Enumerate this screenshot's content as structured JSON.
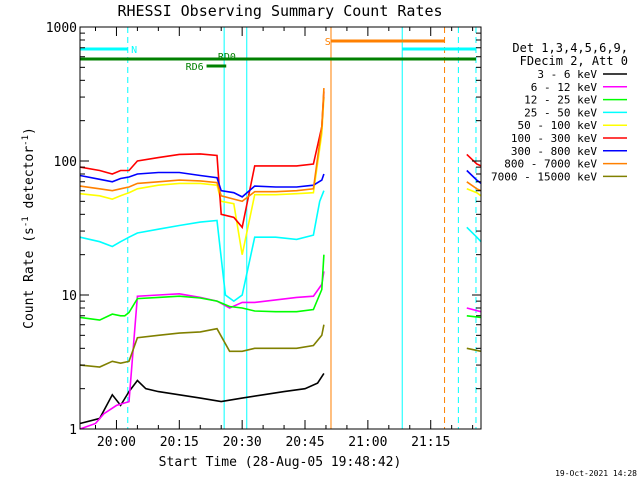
{
  "chart_data": {
    "type": "line",
    "title": "RHESSI Observing Summary Count Rates",
    "xlabel": "Start Time (28-Aug-05 19:48:42)",
    "ylabel_main": "Count Rate (s",
    "ylabel_sup1": "-1",
    "ylabel_mid": " detector",
    "ylabel_sup2": "-1",
    "ylabel_end": ")",
    "y_scale": "log",
    "ylim": [
      1,
      1000
    ],
    "xlim_minutes": [
      -8.7,
      87
    ],
    "x_ticks": [
      {
        "label": "20:00",
        "t": 0
      },
      {
        "label": "20:15",
        "t": 15
      },
      {
        "label": "20:30",
        "t": 30
      },
      {
        "label": "20:45",
        "t": 45
      },
      {
        "label": "21:00",
        "t": 60
      },
      {
        "label": "21:15",
        "t": 75
      }
    ],
    "y_ticks": [
      {
        "label": "1",
        "v": 1
      },
      {
        "label": "10",
        "v": 10
      },
      {
        "label": "100",
        "v": 100
      },
      {
        "label": "1000",
        "v": 1000
      }
    ],
    "legend_header": [
      "Det 1,3,4,5,6,9,",
      "FDecim 2, Att 0"
    ],
    "legend_position": "right",
    "footer_date": "19-Oct-2021 14:28",
    "series": [
      {
        "name": "3 - 6 keV",
        "color": "#000000",
        "segments": [
          [
            [
              -8.7,
              1.1
            ],
            [
              -4,
              1.2
            ],
            [
              -1,
              1.8
            ],
            [
              1,
              1.5
            ],
            [
              3,
              1.9
            ],
            [
              5,
              2.3
            ],
            [
              7,
              2.0
            ],
            [
              10,
              1.9
            ],
            [
              15,
              1.8
            ],
            [
              20,
              1.7
            ],
            [
              25,
              1.6
            ],
            [
              30,
              1.7
            ],
            [
              35,
              1.8
            ],
            [
              40,
              1.9
            ],
            [
              45,
              2.0
            ],
            [
              48,
              2.2
            ],
            [
              49.5,
              2.6
            ]
          ]
        ]
      },
      {
        "name": "6 - 12 keV",
        "color": "#ff00ff",
        "segments": [
          [
            [
              -8.7,
              1.0
            ],
            [
              -5,
              1.1
            ],
            [
              -3,
              1.3
            ],
            [
              0,
              1.5
            ],
            [
              3,
              1.6
            ],
            [
              5,
              9.8
            ],
            [
              10,
              10.0
            ],
            [
              15,
              10.2
            ],
            [
              20,
              9.6
            ],
            [
              24,
              9.0
            ],
            [
              27,
              8.0
            ],
            [
              30,
              8.8
            ],
            [
              33,
              8.8
            ],
            [
              38,
              9.2
            ],
            [
              43,
              9.6
            ],
            [
              47,
              9.8
            ],
            [
              49,
              12
            ],
            [
              49.5,
              15
            ]
          ],
          [
            [
              83.6,
              8.0
            ],
            [
              87,
              7.5
            ]
          ]
        ]
      },
      {
        "name": "12 - 25 keV",
        "color": "#00ff00",
        "segments": [
          [
            [
              -8.7,
              6.8
            ],
            [
              -4,
              6.5
            ],
            [
              -1,
              7.2
            ],
            [
              1,
              7.0
            ],
            [
              2,
              7.0
            ],
            [
              3,
              7.4
            ],
            [
              5,
              9.4
            ],
            [
              10,
              9.6
            ],
            [
              15,
              9.8
            ],
            [
              20,
              9.5
            ],
            [
              24,
              9.0
            ],
            [
              27,
              8.2
            ],
            [
              30,
              8.0
            ],
            [
              33,
              7.6
            ],
            [
              38,
              7.5
            ],
            [
              43,
              7.5
            ],
            [
              47,
              7.8
            ],
            [
              49,
              11
            ],
            [
              49.5,
              20
            ]
          ],
          [
            [
              83.6,
              7.0
            ],
            [
              87,
              6.8
            ]
          ]
        ]
      },
      {
        "name": "25 - 50 keV",
        "color": "#00ffff",
        "segments": [
          [
            [
              -8.7,
              27
            ],
            [
              -4,
              25
            ],
            [
              -1,
              23
            ],
            [
              1,
              25
            ],
            [
              3,
              27
            ],
            [
              5,
              29
            ],
            [
              10,
              31
            ],
            [
              15,
              33
            ],
            [
              20,
              35
            ],
            [
              24,
              36
            ],
            [
              26,
              10
            ],
            [
              28,
              9
            ],
            [
              30,
              10
            ],
            [
              33,
              27
            ],
            [
              38,
              27
            ],
            [
              43,
              26
            ],
            [
              47,
              28
            ],
            [
              48.5,
              50
            ],
            [
              49.5,
              60
            ]
          ],
          [
            [
              83.6,
              32
            ],
            [
              86,
              27
            ],
            [
              87,
              25
            ]
          ]
        ]
      },
      {
        "name": "50 - 100 keV",
        "color": "#ffff00",
        "segments": [
          [
            [
              -8.7,
              57
            ],
            [
              -4,
              55
            ],
            [
              -1,
              52
            ],
            [
              1,
              55
            ],
            [
              3,
              58
            ],
            [
              5,
              62
            ],
            [
              10,
              66
            ],
            [
              15,
              68
            ],
            [
              20,
              68
            ],
            [
              24,
              66
            ],
            [
              25,
              50
            ],
            [
              28,
              48
            ],
            [
              30,
              20
            ],
            [
              33,
              56
            ],
            [
              38,
              56
            ],
            [
              43,
              57
            ],
            [
              47,
              58
            ],
            [
              49,
              160
            ],
            [
              49.5,
              300
            ]
          ],
          [
            [
              83.6,
              62
            ],
            [
              86,
              58
            ],
            [
              87,
              55
            ]
          ]
        ]
      },
      {
        "name": "100 - 300 keV",
        "color": "#ff0000",
        "segments": [
          [
            [
              -8.7,
              90
            ],
            [
              -4,
              85
            ],
            [
              -1,
              80
            ],
            [
              1,
              85
            ],
            [
              3,
              85
            ],
            [
              5,
              100
            ],
            [
              10,
              106
            ],
            [
              15,
              112
            ],
            [
              20,
              113
            ],
            [
              24,
              110
            ],
            [
              25,
              40
            ],
            [
              28,
              38
            ],
            [
              30,
              32
            ],
            [
              33,
              92
            ],
            [
              38,
              92
            ],
            [
              43,
              92
            ],
            [
              47,
              95
            ],
            [
              49,
              180
            ],
            [
              49.5,
              330
            ]
          ],
          [
            [
              83.6,
              112
            ],
            [
              86,
              95
            ],
            [
              87,
              92
            ]
          ]
        ]
      },
      {
        "name": "300 - 800 keV",
        "color": "#0000ff",
        "segments": [
          [
            [
              -8.7,
              78
            ],
            [
              -4,
              73
            ],
            [
              -1,
              70
            ],
            [
              1,
              74
            ],
            [
              3,
              76
            ],
            [
              5,
              80
            ],
            [
              10,
              82
            ],
            [
              15,
              82
            ],
            [
              20,
              78
            ],
            [
              24,
              75
            ],
            [
              25,
              60
            ],
            [
              28,
              58
            ],
            [
              30,
              54
            ],
            [
              33,
              65
            ],
            [
              38,
              64
            ],
            [
              43,
              64
            ],
            [
              47,
              66
            ],
            [
              49,
              72
            ],
            [
              49.5,
              80
            ]
          ],
          [
            [
              83.6,
              85
            ],
            [
              86,
              72
            ],
            [
              87,
              68
            ]
          ]
        ]
      },
      {
        "name": "800 - 7000 keV",
        "color": "#ff8000",
        "segments": [
          [
            [
              -8.7,
              65
            ],
            [
              -4,
              62
            ],
            [
              -1,
              60
            ],
            [
              1,
              62
            ],
            [
              3,
              64
            ],
            [
              5,
              68
            ],
            [
              10,
              70
            ],
            [
              15,
              72
            ],
            [
              20,
              71
            ],
            [
              24,
              69
            ],
            [
              25,
              55
            ],
            [
              28,
              52
            ],
            [
              30,
              50
            ],
            [
              33,
              59
            ],
            [
              38,
              59
            ],
            [
              43,
              60
            ],
            [
              47,
              62
            ],
            [
              49,
              180
            ],
            [
              49.5,
              350
            ]
          ],
          [
            [
              83.6,
              70
            ],
            [
              86,
              62
            ],
            [
              87,
              60
            ]
          ]
        ]
      },
      {
        "name": "7000 - 15000 keV",
        "color": "#808000",
        "segments": [
          [
            [
              -8.7,
              3.0
            ],
            [
              -4,
              2.9
            ],
            [
              -1,
              3.2
            ],
            [
              1,
              3.1
            ],
            [
              3,
              3.2
            ],
            [
              5,
              4.8
            ],
            [
              10,
              5.0
            ],
            [
              15,
              5.2
            ],
            [
              20,
              5.3
            ],
            [
              24,
              5.6
            ],
            [
              27,
              3.8
            ],
            [
              30,
              3.8
            ],
            [
              33,
              4.0
            ],
            [
              38,
              4.0
            ],
            [
              43,
              4.0
            ],
            [
              47,
              4.2
            ],
            [
              49,
              5.0
            ],
            [
              49.5,
              6.0
            ]
          ],
          [
            [
              83.6,
              4.0
            ],
            [
              87,
              3.8
            ]
          ]
        ]
      }
    ],
    "vlines": [
      {
        "t": -8.7,
        "color": "#00ffff",
        "style": "solid"
      },
      {
        "t": 2.7,
        "color": "#00ffff",
        "style": "dashed"
      },
      {
        "t": 25.7,
        "color": "#00ffff",
        "style": "solid"
      },
      {
        "t": 31.1,
        "color": "#00ffff",
        "style": "solid"
      },
      {
        "t": 51.2,
        "color": "#ff8000",
        "style": "solid"
      },
      {
        "t": 68.2,
        "color": "#00ffff",
        "style": "solid"
      },
      {
        "t": 78.3,
        "color": "#ff8000",
        "style": "dashed"
      },
      {
        "t": 81.6,
        "color": "#00ffff",
        "style": "dashed"
      },
      {
        "t": 85.8,
        "color": "#00ffff",
        "style": "dashed"
      }
    ],
    "flag_bars": [
      {
        "label": "N",
        "color": "#00ffff",
        "y": 49,
        "start": -8.7,
        "end": 2.7,
        "label_at": 3.5
      },
      {
        "label": "N",
        "color": "#00ffff",
        "y": 49,
        "start": 68.2,
        "end": 85.8,
        "label_at": null
      },
      {
        "label": "S",
        "color": "#ff8000",
        "y": 41,
        "start": 51.2,
        "end": 68.2,
        "label_at": 49.7
      },
      {
        "label": "S",
        "color": "#ff8000",
        "y": 41,
        "start": 68.2,
        "end": 78.3,
        "label_at": null
      },
      {
        "label": "RD6",
        "color": "#008000",
        "y": 59,
        "start": -8.7,
        "end": 85.8,
        "label_at": null
      },
      {
        "label": "RD6",
        "color": "#008000",
        "y": 66,
        "start": 21.5,
        "end": 26.2,
        "label_at": 16.5
      },
      {
        "label": "RD0",
        "color": "#008000",
        "y": 56,
        "start": null,
        "end": null,
        "label_at": 24.2
      }
    ]
  }
}
